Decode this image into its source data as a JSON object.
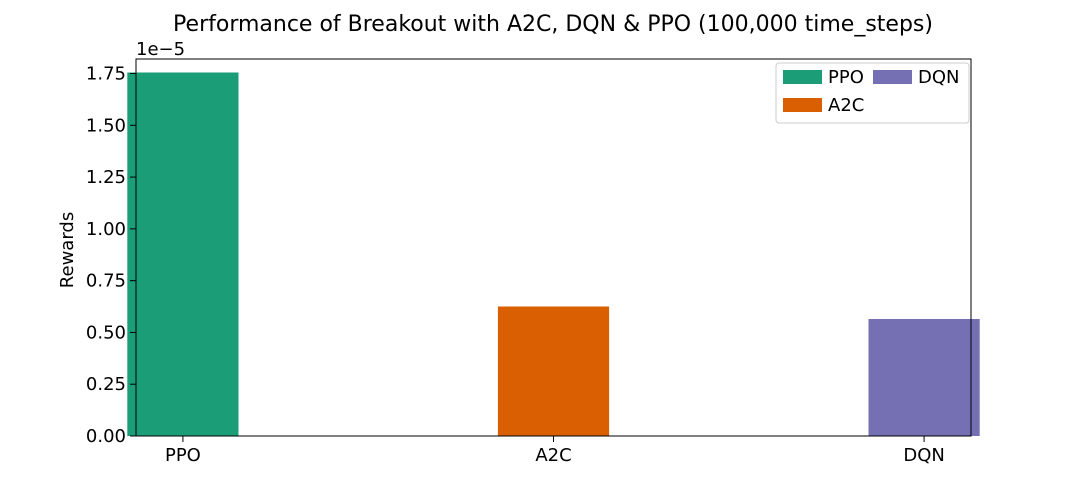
{
  "chart_data": {
    "type": "bar",
    "title": "Performance of Breakout with A2C, DQN & PPO (100,000 time_steps)",
    "xlabel": "",
    "ylabel": "Rewards",
    "y_offset_label": "1e−5",
    "categories": [
      "PPO",
      "A2C",
      "DQN"
    ],
    "values": [
      1.755,
      0.625,
      0.565
    ],
    "value_scale": "1e-5",
    "ylim": [
      0,
      1.82
    ],
    "yticks": [
      "0.00",
      "0.25",
      "0.50",
      "0.75",
      "1.00",
      "1.25",
      "1.50",
      "1.75"
    ],
    "grid": false,
    "legend_position": "top-right",
    "series": [
      {
        "name": "PPO",
        "color": "#1b9e77"
      },
      {
        "name": "A2C",
        "color": "#d95f02"
      },
      {
        "name": "DQN",
        "color": "#7570b3"
      }
    ],
    "legend_order": [
      "PPO",
      "DQN",
      "A2C"
    ]
  }
}
